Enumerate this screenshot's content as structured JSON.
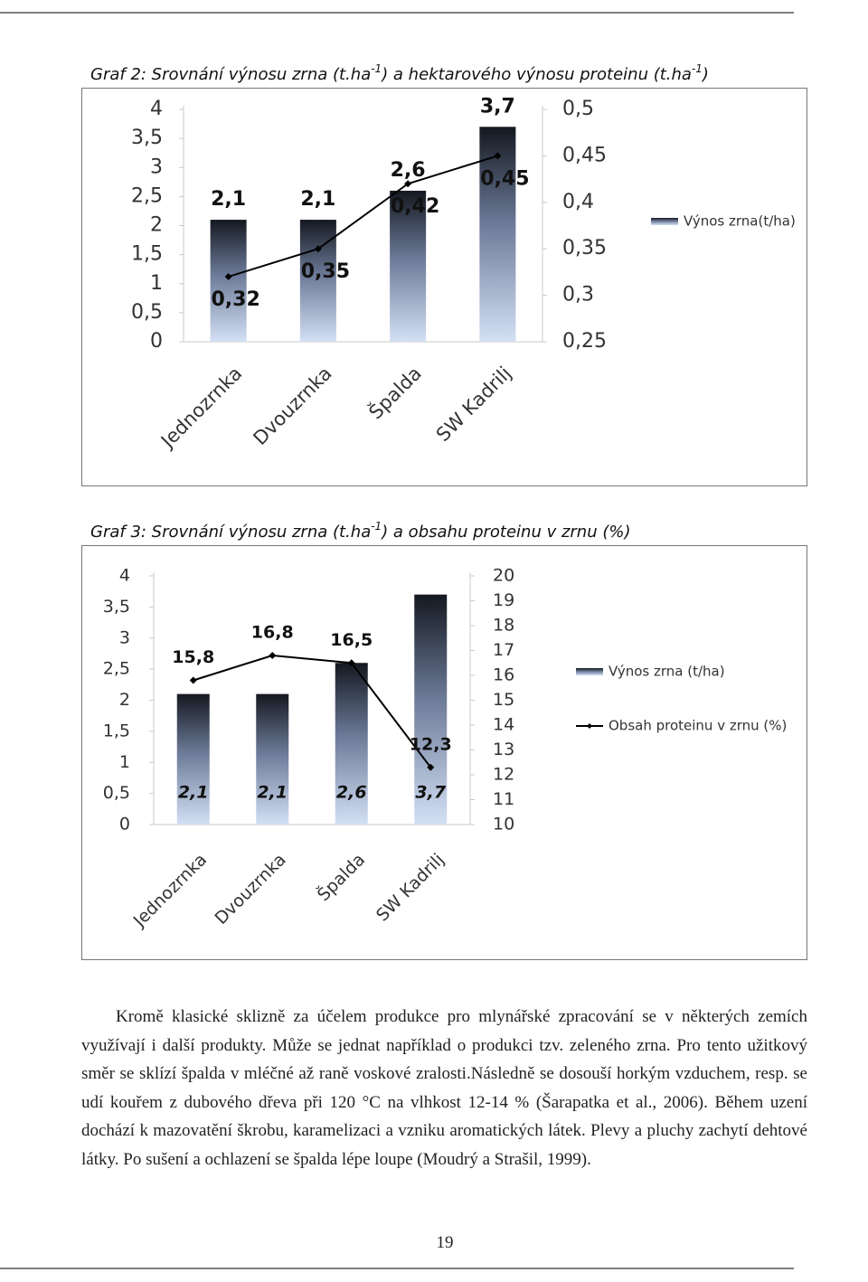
{
  "chart_data": [
    {
      "type": "bar_line",
      "title": [
        "Graf  2: Srovnání výnosu zrna (t.ha",
        "-1",
        ") a hektarového výnosu proteinu (t.ha",
        "-1",
        ")"
      ],
      "categories": [
        "Jednozrnka",
        "Dvouzrnka",
        "Špalda",
        "SW Kadrilj"
      ],
      "series": [
        {
          "name": "Výnos zrna(t/ha)",
          "type": "bar",
          "color": "#1c2233",
          "values": [
            2.1,
            2.1,
            2.6,
            3.7
          ],
          "value_labels": [
            "2,1",
            "2,1",
            "2,6",
            "3,7"
          ]
        },
        {
          "type": "line",
          "axis": "y2",
          "color": "#000000",
          "values": [
            0.32,
            0.35,
            0.42,
            0.45
          ],
          "value_labels": [
            "0,32",
            "0,35",
            "0,42",
            "0,45"
          ]
        }
      ],
      "ylim": [
        0,
        4
      ],
      "yticks": [
        0,
        {
          "value": 0.5,
          "label": "0,5"
        },
        1,
        {
          "value": 1.5,
          "label": "1,5"
        },
        2,
        {
          "value": 2.5,
          "label": "2,5"
        },
        3,
        {
          "value": 3.5,
          "label": "3,5"
        },
        4
      ],
      "y2lim": [
        0.25,
        0.5
      ],
      "y2ticks": [
        {
          "value": 0.25,
          "label": "0,25"
        },
        {
          "value": 0.3,
          "label": "0,3"
        },
        {
          "value": 0.35,
          "label": "0,35"
        },
        {
          "value": 0.4,
          "label": "0,4"
        },
        {
          "value": 0.45,
          "label": "0,45"
        },
        {
          "value": 0.5,
          "label": "0,5"
        }
      ],
      "legend": "right"
    },
    {
      "type": "bar_line",
      "title": [
        "Graf  3: Srovnání výnosu zrna (t.ha",
        "-1",
        ") a obsahu proteinu v zrnu (%)"
      ],
      "categories": [
        "Jednozrnka",
        "Dvouzrnka",
        "Špalda",
        "SW Kadrilj"
      ],
      "series": [
        {
          "name": "Výnos zrna (t/ha)",
          "type": "bar",
          "color": "#1c2233",
          "values": [
            2.1,
            2.1,
            2.6,
            3.7
          ],
          "value_labels": [
            "2,1",
            "2,1",
            "2,6",
            "3,7"
          ]
        },
        {
          "name": "Obsah proteinu v zrnu (%)",
          "type": "line",
          "axis": "y2",
          "color": "#000000",
          "values": [
            15.8,
            16.8,
            16.5,
            12.3
          ],
          "value_labels": [
            "15,8",
            "16,8",
            "16,5",
            "12,3"
          ]
        }
      ],
      "ylim": [
        0,
        4
      ],
      "yticks": [
        0,
        {
          "value": 0.5,
          "label": "0,5"
        },
        1,
        {
          "value": 1.5,
          "label": "1,5"
        },
        2,
        {
          "value": 2.5,
          "label": "2,5"
        },
        3,
        {
          "value": 3.5,
          "label": "3,5"
        },
        4
      ],
      "y2lim": [
        10,
        20
      ],
      "y2ticks": [
        10,
        11,
        12,
        13,
        14,
        15,
        16,
        17,
        18,
        19,
        20
      ],
      "legend": "right"
    }
  ],
  "body": {
    "paragraph": "Kromě klasické sklizně za účelem produkce pro mlynářské zpracování se v některých zemích využívají i další produkty. Může se jednat například o produkci tzv. zeleného zrna. Pro tento užitkový směr se sklízí špalda v mléčné až raně voskové zralosti.Následně se dosouší horkým vzduchem, resp. se udí kouřem z dubového dřeva při 120 °C na vlhkost 12-14 % (Šarapatka et al., 2006). Během uzení dochází k mazovatění škrobu, karamelizaci a vzniku aromatických látek. Plevy a pluchy zachytí dehtové látky. Po sušení a ochlazení se špalda lépe loupe (Moudrý a Strašil, 1999).",
    "page_number": "19"
  }
}
